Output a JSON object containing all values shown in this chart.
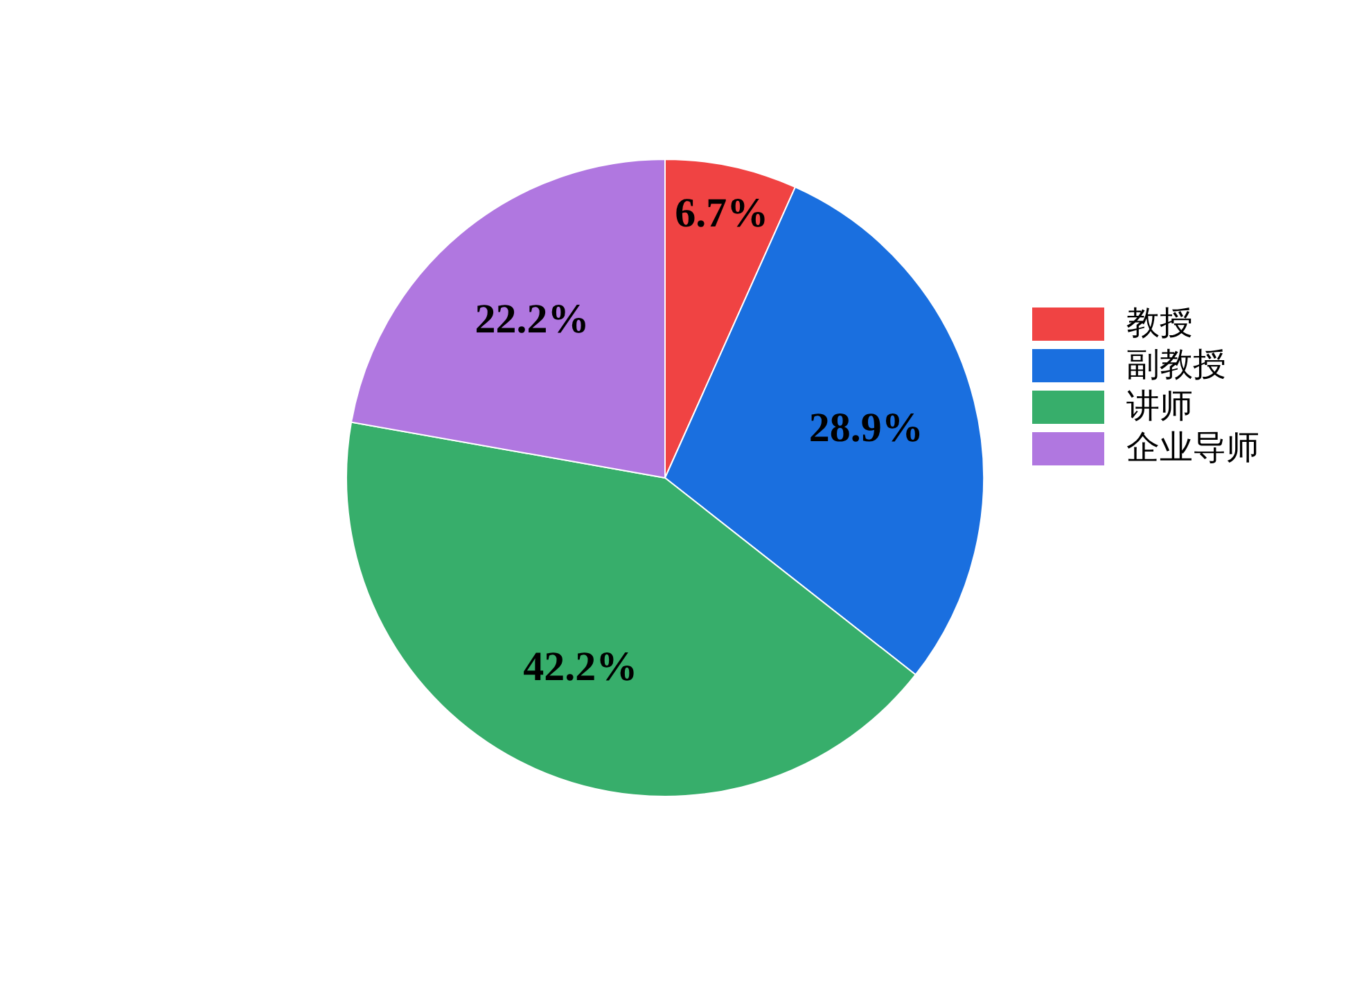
{
  "chart_data": {
    "type": "pie",
    "categories": [
      "教授",
      "副教授",
      "讲师",
      "企业导师"
    ],
    "values": [
      6.7,
      28.9,
      42.2,
      22.2
    ],
    "colors": [
      "#f04343",
      "#1a6fdf",
      "#37ae6b",
      "#b077e0"
    ],
    "value_labels": [
      "6.7%",
      "28.9%",
      "42.2%",
      "22.2%"
    ],
    "legend": "right"
  }
}
